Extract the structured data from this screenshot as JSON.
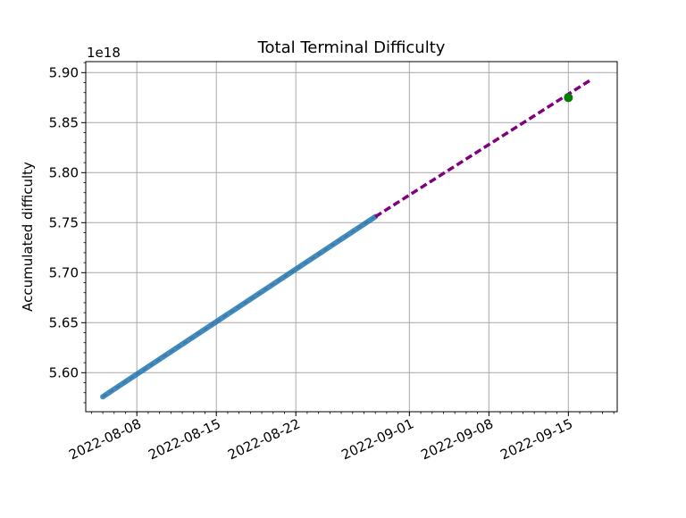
{
  "chart_data": {
    "type": "line",
    "title": "Total Terminal Difficulty",
    "xlabel": "",
    "ylabel": "Accumulated difficulty",
    "y_offset_label": "1e18",
    "x_ticks": [
      "2022-08-08",
      "2022-08-15",
      "2022-08-22",
      "2022-09-01",
      "2022-09-08",
      "2022-09-15"
    ],
    "y_ticks": [
      "5.60",
      "5.65",
      "5.70",
      "5.75",
      "5.80",
      "5.85",
      "5.90"
    ],
    "xlim": [
      "2022-08-04",
      "2022-09-19"
    ],
    "ylim": [
      5.561,
      5.911
    ],
    "grid": true,
    "legend": false,
    "series": [
      {
        "style": "solid",
        "color": "#1f77b4",
        "x": [
          "2022-08-05",
          "2022-08-29"
        ],
        "y": [
          5.576,
          5.756
        ]
      },
      {
        "style": "dashed",
        "color": "#800080",
        "x": [
          "2022-08-29",
          "2022-09-17"
        ],
        "y": [
          5.756,
          5.893
        ]
      }
    ],
    "points": [
      {
        "color": "#008000",
        "x": "2022-09-15",
        "y": 5.875
      }
    ]
  }
}
